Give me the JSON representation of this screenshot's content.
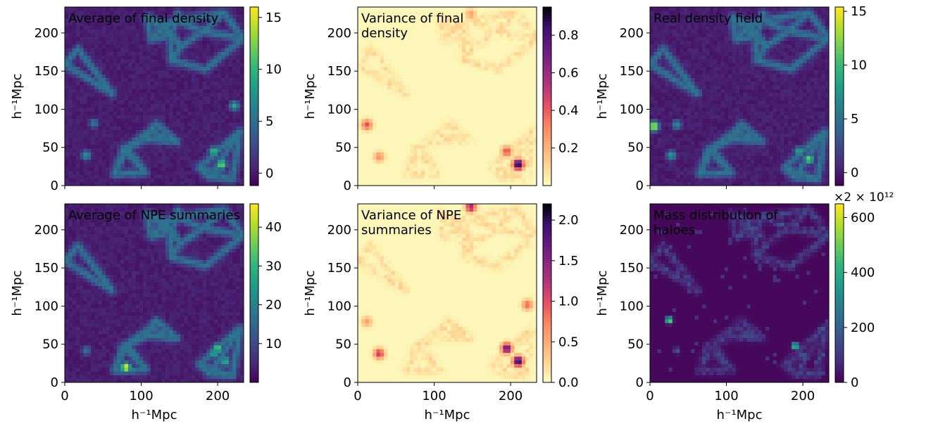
{
  "figure": {
    "axis_label": "h⁻¹Mpc",
    "panels": [
      {
        "title": "Average of final density",
        "colormap": "viridis",
        "colorbar": {
          "min": -1.2,
          "max": 16,
          "ticks": [
            0,
            5,
            10,
            15
          ],
          "ticklabels": [
            "0",
            "5",
            "10",
            "15"
          ],
          "offset_label": ""
        }
      },
      {
        "title": "Variance of final density",
        "colormap": "magma_r",
        "colorbar": {
          "min": 0.0,
          "max": 0.95,
          "ticks": [
            0.2,
            0.4,
            0.6,
            0.8
          ],
          "ticklabels": [
            "0.2",
            "0.4",
            "0.6",
            "0.8"
          ],
          "offset_label": ""
        }
      },
      {
        "title": "Real density field",
        "colormap": "viridis",
        "colorbar": {
          "min": -1.2,
          "max": 15.4,
          "ticks": [
            0,
            5,
            10,
            15
          ],
          "ticklabels": [
            "0",
            "5",
            "10",
            "15"
          ],
          "offset_label": ""
        }
      },
      {
        "title": "Average of NPE summaries",
        "colormap": "viridis",
        "colorbar": {
          "min": 0,
          "max": 46,
          "ticks": [
            10,
            20,
            30,
            40
          ],
          "ticklabels": [
            "10",
            "20",
            "30",
            "40"
          ],
          "offset_label": ""
        }
      },
      {
        "title": "Variance of NPE summaries",
        "colormap": "magma_r",
        "colorbar": {
          "min": 0.0,
          "max": 2.2,
          "ticks": [
            0.0,
            0.5,
            1.0,
            1.5,
            2.0
          ],
          "ticklabels": [
            "0.0",
            "0.5",
            "1.0",
            "1.5",
            "2.0"
          ],
          "offset_label": ""
        }
      },
      {
        "title": "Mass distribution of haloes",
        "colormap": "viridis",
        "colorbar": {
          "min": 0,
          "max": 650,
          "ticks": [
            0,
            200,
            400,
            600
          ],
          "ticklabels": [
            "0",
            "200",
            "400",
            "600"
          ],
          "offset_label": "×2 × 10¹²"
        }
      }
    ]
  },
  "chart_data": {
    "type": "heatmap",
    "layout": "2x3 grid",
    "x_range": [
      0,
      234
    ],
    "y_range": [
      0,
      234
    ],
    "xticks": [
      0,
      100,
      200
    ],
    "yticks": [
      0,
      50,
      100,
      150,
      200
    ],
    "xlabel": "h⁻¹Mpc",
    "ylabel": "h⁻¹Mpc",
    "note_on_values": "pixel-level field values are not legible; notable peaks estimated below (x, y in h⁻¹Mpc)",
    "panels": [
      {
        "title": "Average of final density",
        "vmin": -1.2,
        "vmax": 16,
        "peaks": [
          [
            205,
            28,
            13
          ],
          [
            195,
            45,
            11
          ],
          [
            222,
            105,
            9
          ],
          [
            28,
            40,
            8
          ],
          [
            148,
            225,
            6
          ],
          [
            38,
            82,
            6
          ]
        ]
      },
      {
        "title": "Variance of final density",
        "vmin": 0.0,
        "vmax": 0.95,
        "peaks": [
          [
            210,
            28,
            0.95
          ],
          [
            195,
            45,
            0.45
          ],
          [
            12,
            80,
            0.45
          ],
          [
            28,
            38,
            0.3
          ],
          [
            148,
            225,
            0.25
          ]
        ]
      },
      {
        "title": "Real density field",
        "vmin": -1.2,
        "vmax": 15.4,
        "peaks": [
          [
            5,
            78,
            15
          ],
          [
            208,
            35,
            12
          ],
          [
            195,
            45,
            9
          ],
          [
            28,
            40,
            8
          ],
          [
            35,
            80,
            7
          ],
          [
            148,
            225,
            6
          ]
        ]
      },
      {
        "title": "Average of NPE summaries",
        "vmin": 0,
        "vmax": 46,
        "peaks": [
          [
            80,
            20,
            46
          ],
          [
            200,
            45,
            35
          ],
          [
            210,
            28,
            30
          ],
          [
            195,
            38,
            28
          ],
          [
            148,
            225,
            20
          ],
          [
            28,
            42,
            18
          ]
        ]
      },
      {
        "title": "Variance of NPE summaries",
        "vmin": 0.0,
        "vmax": 2.2,
        "peaks": [
          [
            210,
            28,
            2.1
          ],
          [
            195,
            45,
            1.8
          ],
          [
            148,
            230,
            1.4
          ],
          [
            28,
            38,
            1.2
          ],
          [
            222,
            102,
            0.9
          ],
          [
            12,
            80,
            0.6
          ]
        ]
      },
      {
        "title": "Mass distribution of haloes",
        "vmin": 0,
        "vmax": 650,
        "peaks": [
          [
            25,
            82,
            650
          ],
          [
            190,
            48,
            600
          ],
          [
            200,
            35,
            250
          ],
          [
            35,
            42,
            200
          ]
        ]
      }
    ]
  }
}
